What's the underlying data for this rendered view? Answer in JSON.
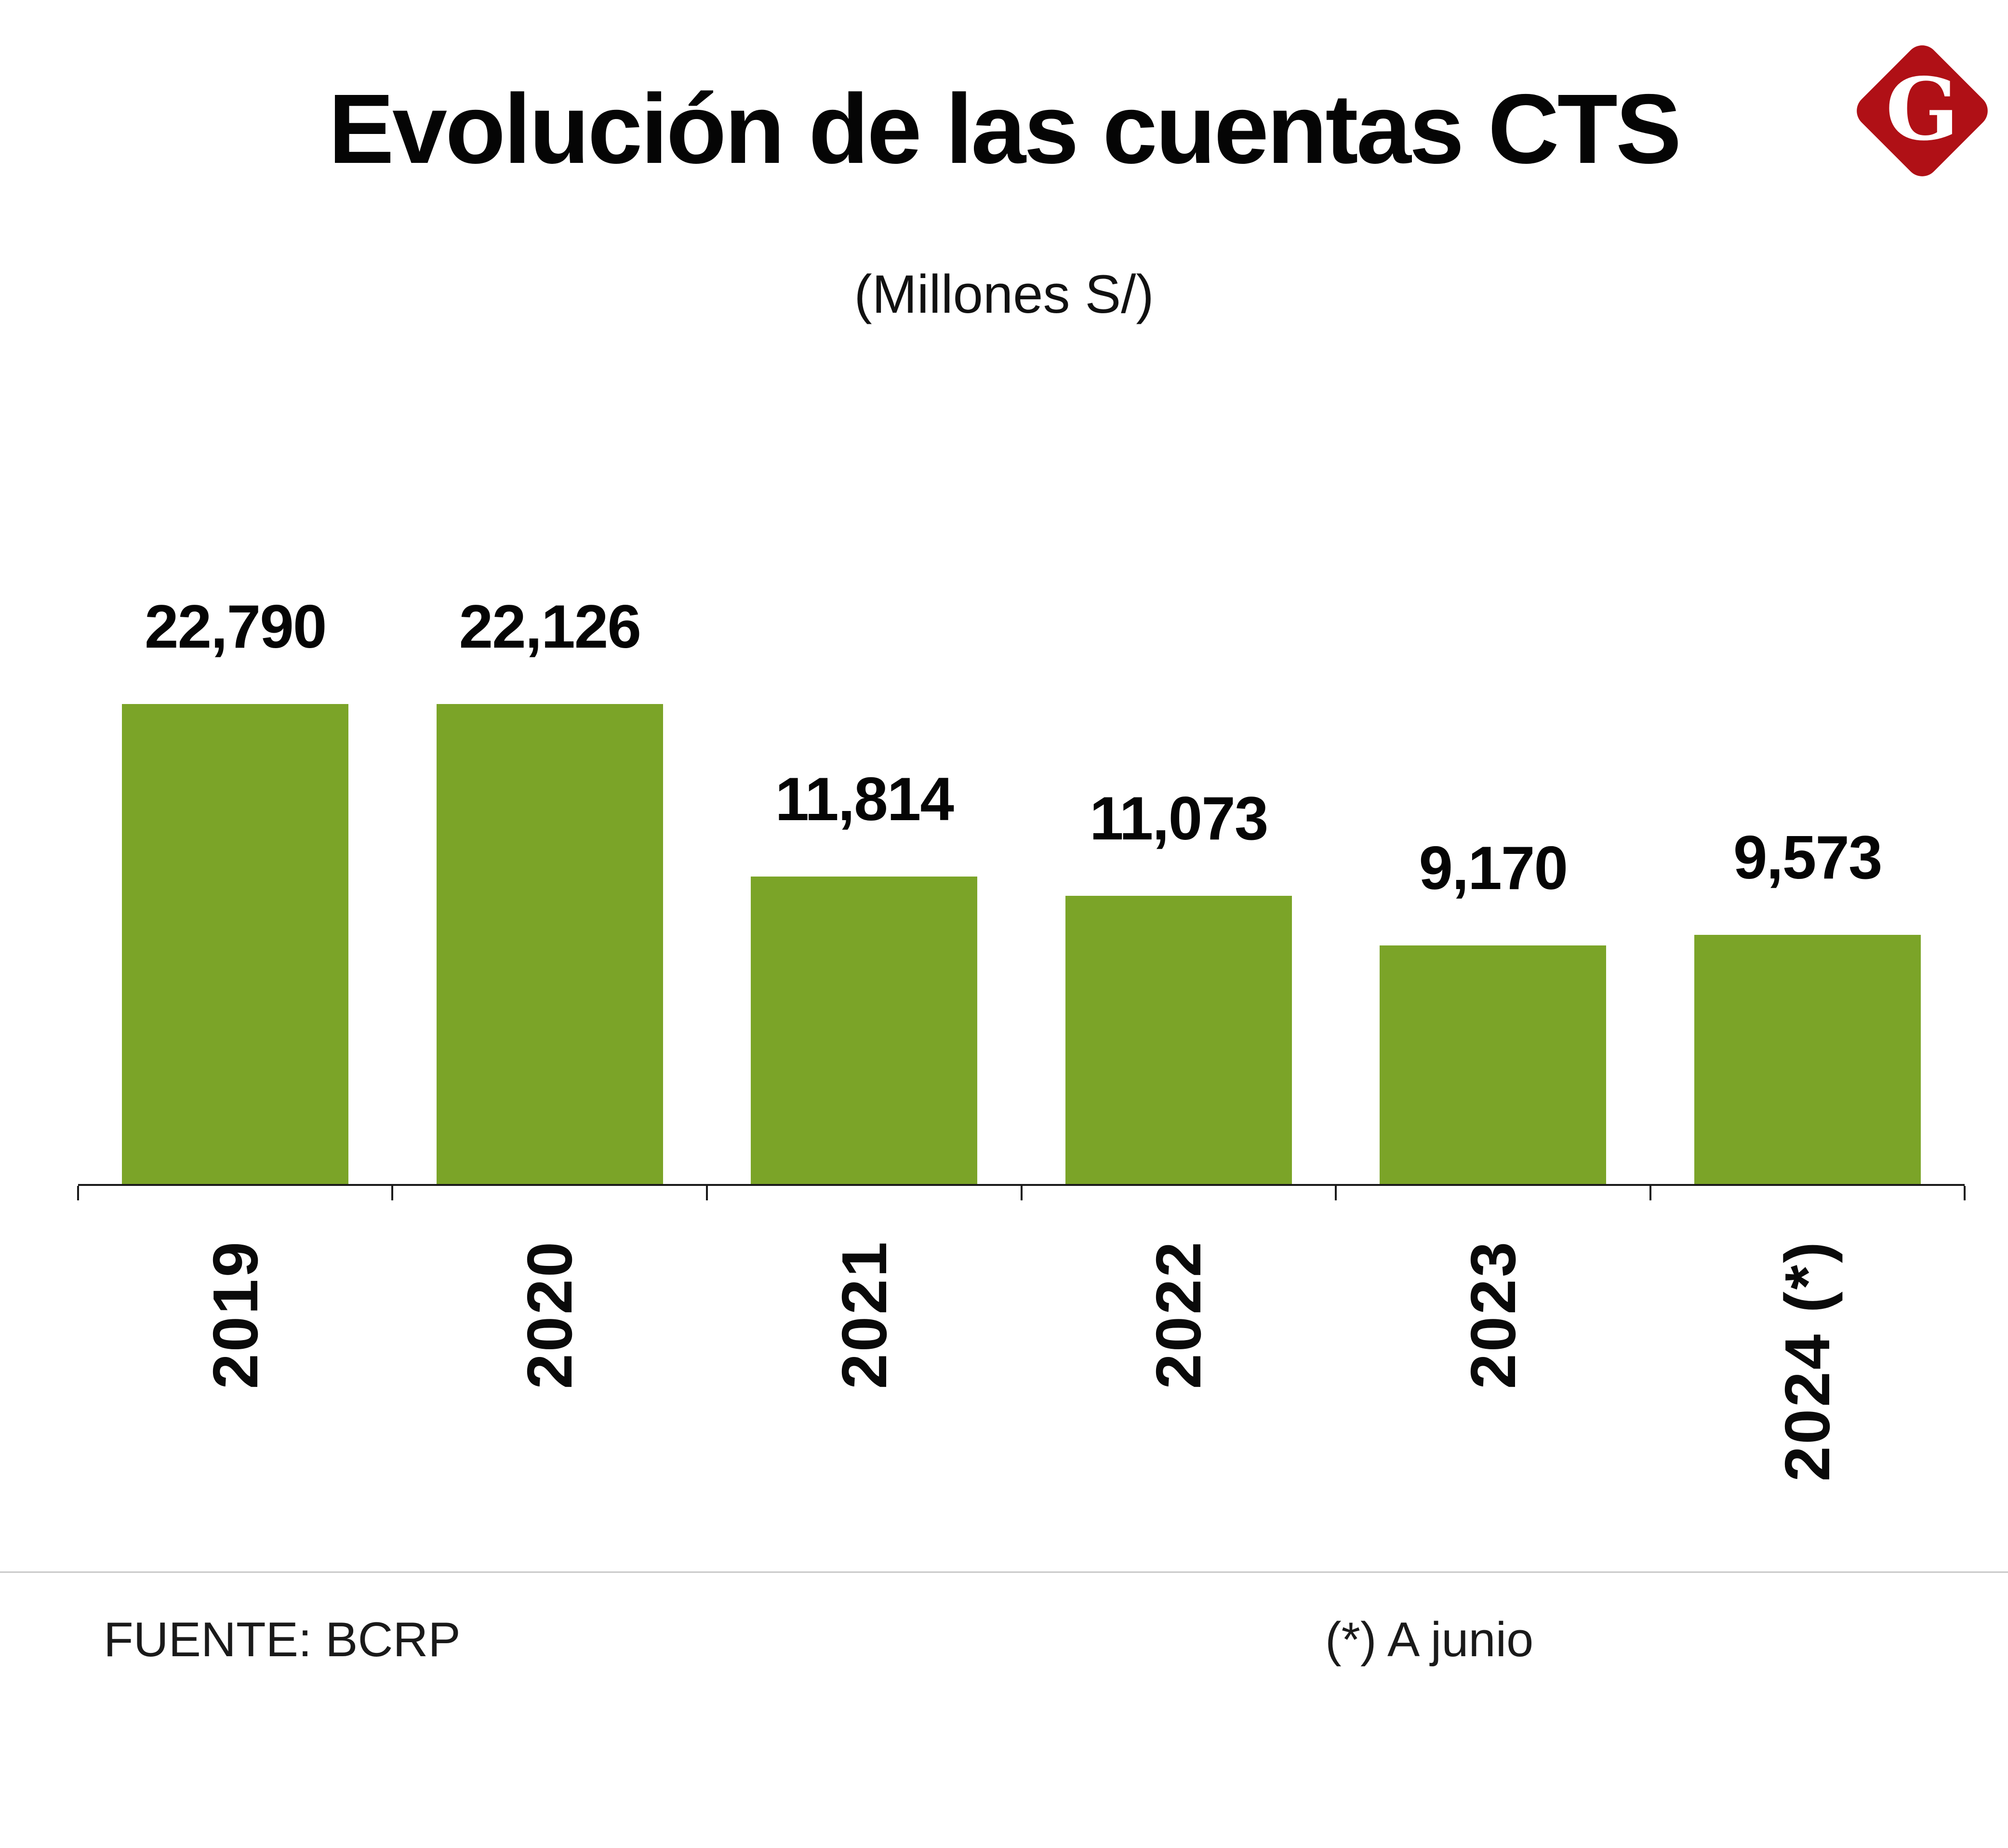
{
  "header": {
    "title": "Evolución de las cuentas CTS",
    "subtitle": "(Millones S/)",
    "logo_letter": "G",
    "logo_color": "#b01016"
  },
  "chart_data": {
    "type": "bar",
    "title": "Evolución de las cuentas CTS",
    "subtitle": "(Millones S/)",
    "unit": "Millones S/",
    "categories": [
      "2019",
      "2020",
      "2021",
      "2022",
      "2023",
      "2024 (*)"
    ],
    "values": [
      22790,
      22126,
      11814,
      11073,
      9170,
      9573
    ],
    "value_labels": [
      "22,790",
      "22,126",
      "11,814",
      "11,073",
      "9,170",
      "9,573"
    ],
    "bar_color": "#7ba428",
    "axis_color": "#1a1a1a",
    "ylim": [
      0,
      23000
    ],
    "grid": false,
    "y_axis_shown": false,
    "x_tick_rotation": -90,
    "legend": "none"
  },
  "footer": {
    "source": "FUENTE: BCRP",
    "note": "(*) A junio"
  }
}
